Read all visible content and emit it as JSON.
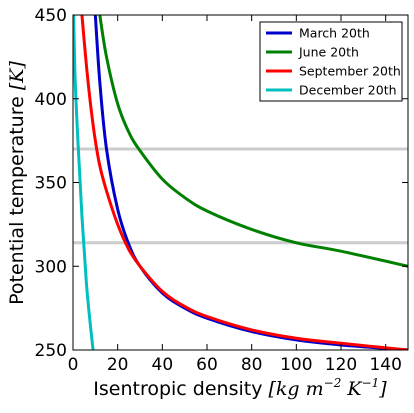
{
  "chart_data": {
    "type": "line",
    "xlabel_text": "Isentropic density ",
    "xlabel_math": "[kg m",
    "xlabel_sup1": "−2",
    "xlabel_math2": " K",
    "xlabel_sup2": "−1",
    "xlabel_close": "]",
    "ylabel_text": "Potential temperature ",
    "ylabel_math": "[K]",
    "xlim": [
      0,
      150
    ],
    "ylim": [
      250,
      450
    ],
    "xticks": [
      0,
      20,
      40,
      60,
      80,
      100,
      120,
      140
    ],
    "yticks": [
      250,
      300,
      350,
      400,
      450
    ],
    "grid": false,
    "legend_position": "top-right",
    "reference_lines": {
      "orientation": "horizontal",
      "color": "#cccccc",
      "values": [
        314,
        370
      ]
    },
    "series": [
      {
        "name": "March 20th",
        "color": "#0000cc",
        "x": [
          10,
          12,
          15,
          20,
          25,
          30,
          40,
          50,
          60,
          80,
          100,
          120,
          150
        ],
        "y": [
          450,
          410,
          370,
          334,
          313,
          300,
          284,
          275,
          269,
          261,
          256,
          253,
          250
        ]
      },
      {
        "name": "June 20th",
        "color": "#008000",
        "x": [
          12,
          15,
          20,
          25,
          30,
          40,
          50,
          60,
          80,
          100,
          120,
          150
        ],
        "y": [
          450,
          425,
          397,
          380,
          369,
          352,
          341,
          333,
          322,
          314,
          309,
          300
        ]
      },
      {
        "name": "September 20th",
        "color": "#ff0000",
        "x": [
          4,
          6,
          8,
          10,
          12,
          15,
          20,
          25,
          30,
          40,
          50,
          60,
          80,
          100,
          120,
          150
        ],
        "y": [
          450,
          420,
          395,
          375,
          360,
          345,
          325,
          310,
          300,
          285,
          276,
          270,
          262,
          257,
          254,
          250
        ]
      },
      {
        "name": "December 20th",
        "color": "#00bfbf",
        "x": [
          0.3,
          0.6,
          1,
          2,
          3,
          4,
          5,
          6,
          7,
          8,
          9
        ],
        "y": [
          450,
          430,
          410,
          380,
          355,
          330,
          310,
          290,
          275,
          262,
          250
        ]
      }
    ]
  }
}
